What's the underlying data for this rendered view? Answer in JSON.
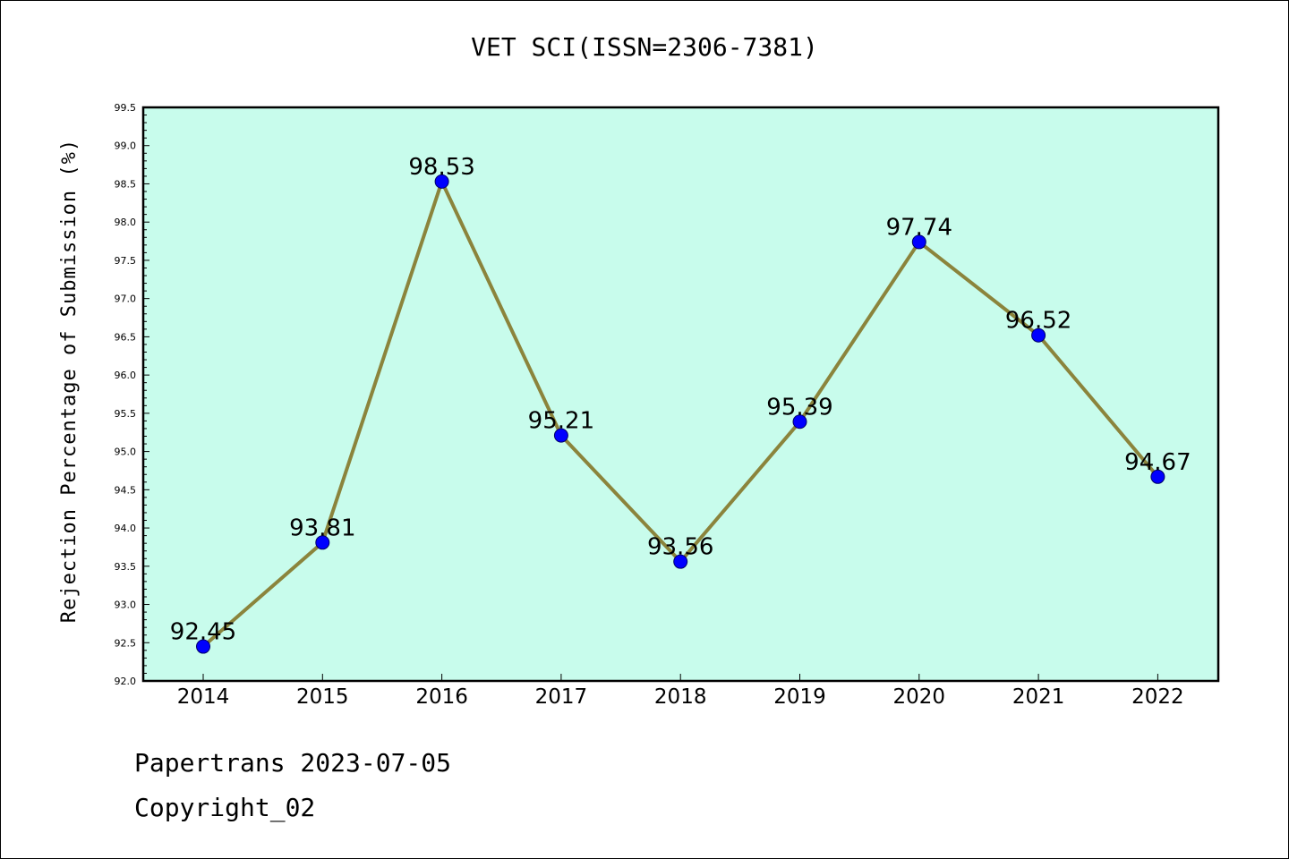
{
  "chart_data": {
    "type": "line",
    "title": "VET SCI(ISSN=2306-7381)",
    "xlabel": "",
    "ylabel": "Rejection Percentage of Submission (%)",
    "categories": [
      "2014",
      "2015",
      "2016",
      "2017",
      "2018",
      "2019",
      "2020",
      "2021",
      "2022"
    ],
    "series": [
      {
        "values": [
          92.45,
          93.81,
          98.53,
          95.21,
          93.56,
          95.39,
          97.74,
          96.52,
          94.67
        ],
        "data_labels": [
          "92.45",
          "93.81",
          "98.53",
          "95.21",
          "93.56",
          "95.39",
          "97.74",
          "96.52",
          "94.67"
        ]
      }
    ],
    "ylim": [
      92.0,
      99.5
    ],
    "yticks": [
      "92.0",
      "92.5",
      "93.0",
      "93.5",
      "94.0",
      "94.5",
      "95.0",
      "95.5",
      "96.0",
      "96.5",
      "97.0",
      "97.5",
      "98.0",
      "98.5",
      "99.0",
      "99.5"
    ],
    "grid": false,
    "legend": "none",
    "colors": {
      "plot_background": "#c8fcec",
      "line": "#8b843c",
      "marker": "#0000ff"
    }
  },
  "footer": {
    "line1": "Papertrans 2023-07-05",
    "line2": "Copyright_02"
  }
}
